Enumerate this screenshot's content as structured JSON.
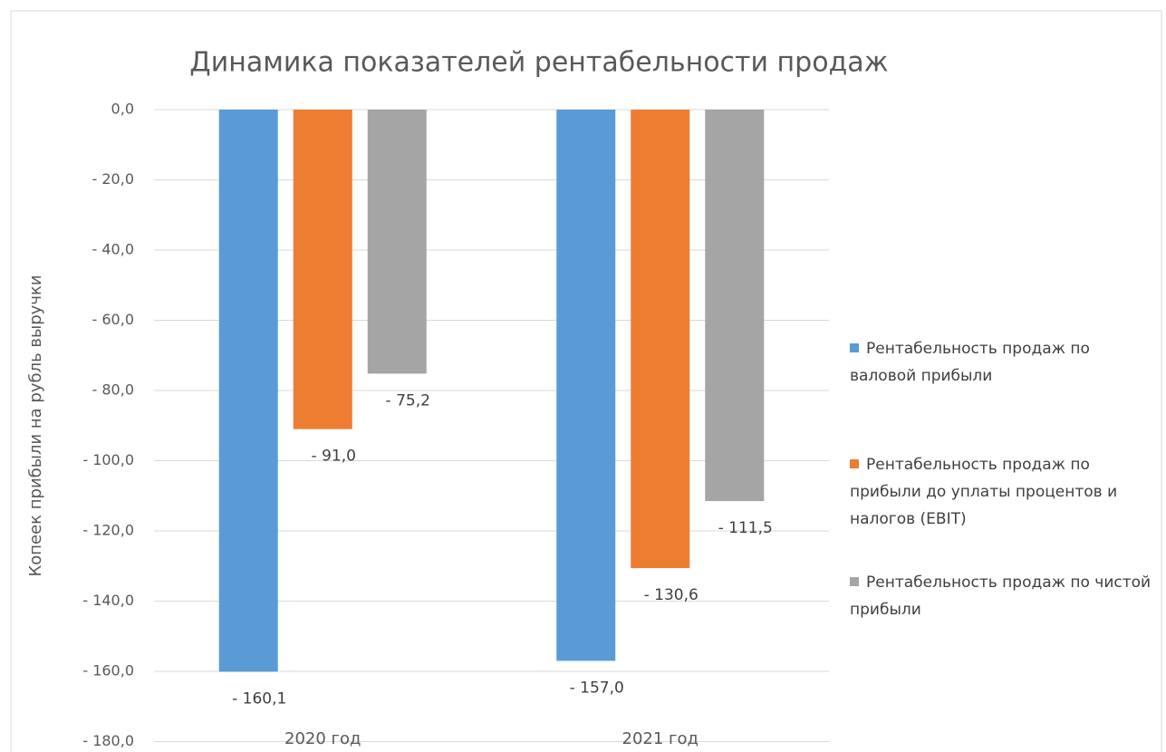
{
  "chart_data": {
    "type": "bar",
    "title": "Динамика показателей рентабельности продаж",
    "y_label": "Копеек прибыли на рубль выручки",
    "categories": [
      "2020 год",
      "2021 год"
    ],
    "series": [
      {
        "name": "Рентабельность продаж по валовой прибыли",
        "color": "#5b9bd5",
        "values": [
          -160.1,
          -157.0
        ],
        "value_labels": [
          "- 160,1",
          "- 157,0"
        ]
      },
      {
        "name": "Рентабельность продаж по прибыли до уплаты процентов и налогов (EBIT)",
        "color": "#ed7d31",
        "values": [
          -91.0,
          -130.6
        ],
        "value_labels": [
          "- 91,0",
          "- 130,6"
        ]
      },
      {
        "name": "Рентабельность продаж по чистой прибыли",
        "color": "#a5a5a5",
        "values": [
          -75.2,
          -111.5
        ],
        "value_labels": [
          "- 75,2",
          "- 111,5"
        ]
      }
    ],
    "ylim": [
      -180,
      0
    ],
    "yticks": [
      {
        "value": 0,
        "label": "0,0"
      },
      {
        "value": -20,
        "label": "- 20,0"
      },
      {
        "value": -40,
        "label": "- 40,0"
      },
      {
        "value": -60,
        "label": "- 60,0"
      },
      {
        "value": -80,
        "label": "- 80,0"
      },
      {
        "value": -100,
        "label": "- 100,0"
      },
      {
        "value": -120,
        "label": "- 120,0"
      },
      {
        "value": -140,
        "label": "- 140,0"
      },
      {
        "value": -160,
        "label": "- 160,0"
      },
      {
        "value": -180,
        "label": "- 180,0"
      }
    ],
    "grid": true,
    "legend": "right"
  }
}
